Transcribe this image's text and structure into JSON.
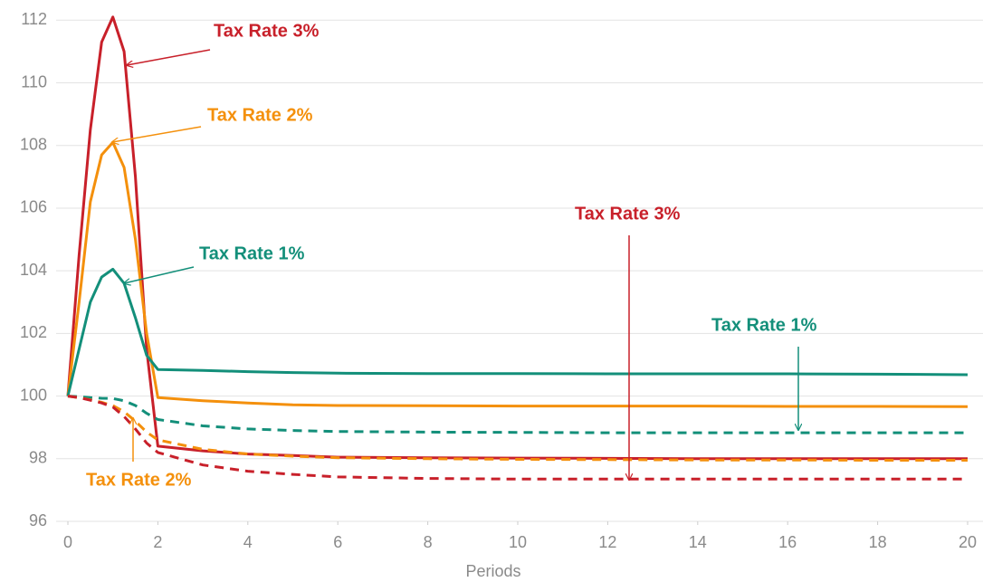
{
  "chart_data": {
    "type": "line",
    "x_label": "Periods",
    "x": [
      0,
      0.25,
      0.5,
      0.75,
      1,
      1.25,
      1.5,
      1.75,
      2,
      3,
      4,
      5,
      6,
      8,
      10,
      12,
      14,
      16,
      18,
      20
    ],
    "series": [
      {
        "color": "#c8202a",
        "dashed": false,
        "values": [
          100,
          104.5,
          108.5,
          111.3,
          112.1,
          111,
          107,
          101.5,
          98.4,
          98.25,
          98.15,
          98.1,
          98.05,
          98.03,
          98.02,
          98.01,
          98.0,
          98.0,
          98.0,
          98.0
        ]
      },
      {
        "color": "#f4900c",
        "dashed": false,
        "values": [
          100,
          103,
          106.2,
          107.7,
          108.1,
          107.3,
          105,
          102,
          99.95,
          99.85,
          99.78,
          99.72,
          99.7,
          99.69,
          99.68,
          99.68,
          99.68,
          99.67,
          99.67,
          99.66
        ]
      },
      {
        "color": "#138f7a",
        "dashed": false,
        "values": [
          100,
          101.5,
          103,
          103.8,
          104.05,
          103.6,
          102.5,
          101.3,
          100.85,
          100.82,
          100.78,
          100.75,
          100.73,
          100.72,
          100.72,
          100.71,
          100.71,
          100.71,
          100.7,
          100.68
        ]
      },
      {
        "color": "#138f7a",
        "dashed": true,
        "values": [
          100,
          99.98,
          99.95,
          99.93,
          99.92,
          99.85,
          99.7,
          99.45,
          99.25,
          99.05,
          98.95,
          98.9,
          98.87,
          98.85,
          98.84,
          98.83,
          98.83,
          98.83,
          98.83,
          98.83
        ]
      },
      {
        "color": "#f4900c",
        "dashed": true,
        "values": [
          100,
          99.95,
          99.88,
          99.8,
          99.7,
          99.5,
          99.2,
          98.85,
          98.6,
          98.3,
          98.15,
          98.08,
          98.03,
          98.0,
          97.98,
          97.97,
          97.96,
          97.96,
          97.95,
          97.95
        ]
      },
      {
        "color": "#c8202a",
        "dashed": true,
        "values": [
          100,
          99.95,
          99.87,
          99.78,
          99.65,
          99.35,
          98.95,
          98.5,
          98.2,
          97.8,
          97.6,
          97.5,
          97.42,
          97.37,
          97.35,
          97.35,
          97.35,
          97.35,
          97.35,
          97.35
        ]
      }
    ],
    "annotations": [
      {
        "text": "Tax Rate 3%",
        "color": "#c8202a"
      },
      {
        "text": "Tax Rate 2%",
        "color": "#f4900c"
      },
      {
        "text": "Tax Rate 1%",
        "color": "#138f7a"
      },
      {
        "text": "Tax Rate 3%",
        "color": "#c8202a"
      },
      {
        "text": "Tax Rate 1%",
        "color": "#138f7a"
      },
      {
        "text": "Tax Rate 2%",
        "color": "#f4900c"
      }
    ],
    "xlim": [
      0,
      20
    ],
    "xticks": [
      0,
      2,
      4,
      6,
      8,
      10,
      12,
      14,
      16,
      18,
      20
    ],
    "ylim": [
      96,
      112.5
    ],
    "yticks": [
      96,
      98,
      100,
      102,
      104,
      106,
      108,
      110,
      112
    ],
    "grid": true
  }
}
